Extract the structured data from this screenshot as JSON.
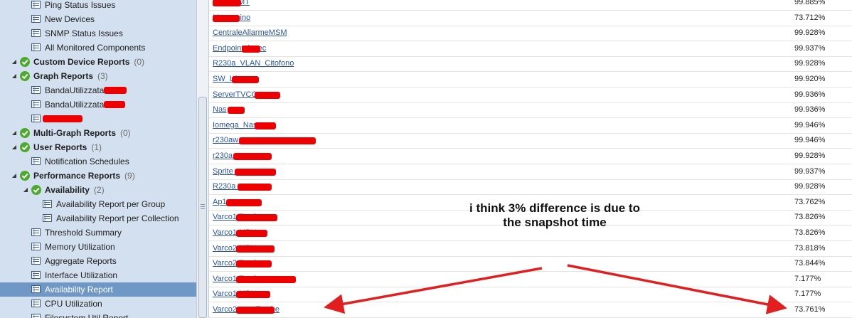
{
  "tree": {
    "items": [
      {
        "label": "Ping Status Issues",
        "level": 2,
        "type": "report"
      },
      {
        "label": "New Devices",
        "level": 2,
        "type": "report"
      },
      {
        "label": "SNMP Status Issues",
        "level": 2,
        "type": "report"
      },
      {
        "label": "All Monitored Components",
        "level": 2,
        "type": "report"
      },
      {
        "label": "Custom Device Reports",
        "count": "(0)",
        "level": 1,
        "type": "group"
      },
      {
        "label": "Graph Reports",
        "count": "(3)",
        "level": 1,
        "type": "group"
      },
      {
        "label": "BandaUtilizzata",
        "level": 2,
        "type": "report"
      },
      {
        "label": "BandaUtilizzata",
        "level": 2,
        "type": "report"
      },
      {
        "label": "",
        "level": 2,
        "type": "report"
      },
      {
        "label": "Multi-Graph Reports",
        "count": "(0)",
        "level": 1,
        "type": "group"
      },
      {
        "label": "User Reports",
        "count": "(1)",
        "level": 1,
        "type": "group"
      },
      {
        "label": "Notification Schedules",
        "level": 2,
        "type": "report"
      },
      {
        "label": "Performance Reports",
        "count": "(9)",
        "level": 1,
        "type": "group"
      },
      {
        "label": "Availability",
        "count": "(2)",
        "level": 2,
        "type": "group"
      },
      {
        "label": "Availability Report per Group",
        "level": 3,
        "type": "report"
      },
      {
        "label": "Availability Report per Collection",
        "level": 3,
        "type": "report"
      },
      {
        "label": "Threshold Summary",
        "level": 2,
        "type": "report"
      },
      {
        "label": "Memory Utilization",
        "level": 2,
        "type": "report"
      },
      {
        "label": "Aggregate Reports",
        "level": 2,
        "type": "report"
      },
      {
        "label": "Interface Utilization",
        "level": 2,
        "type": "report"
      },
      {
        "label": "Availability Report",
        "level": 2,
        "type": "report",
        "selected": true
      },
      {
        "label": "CPU Utilization",
        "level": 2,
        "type": "report"
      },
      {
        "label": "Filesystem Util Report",
        "level": 2,
        "type": "report"
      }
    ]
  },
  "table": {
    "rows": [
      {
        "device": "ANTBTMT",
        "value": "99.885%"
      },
      {
        "device": "Magazzino",
        "value": "73.712%"
      },
      {
        "device": "CentraleAllarmeMSM",
        "value": "99.928%"
      },
      {
        "device": "Endpoint_ipsec",
        "value": "99.937%"
      },
      {
        "device": "R230a_VLAN_Citofono",
        "value": "99.928%"
      },
      {
        "device": "SW_L3_",
        "value": "99.920%"
      },
      {
        "device": "ServerTVCC",
        "value": "99.936%"
      },
      {
        "device": "Nas",
        "value": "99.936%"
      },
      {
        "device": "Iomega_Nas_",
        "value": "99.946%"
      },
      {
        "device": "r230aw_",
        "value": "99.946%"
      },
      {
        "device": "r230a_",
        "value": "99.928%"
      },
      {
        "device": "Sprite_",
        "value": "99.937%"
      },
      {
        "device": "R230a_",
        "value": "99.928%"
      },
      {
        "device": "Ap1",
        "value": "73.762%"
      },
      {
        "device": "Varco1 Targhe",
        "value": "73.826%"
      },
      {
        "device": "Varco1 MPX",
        "value": "73.826%"
      },
      {
        "device": "Varco2 MPX",
        "value": "73.818%"
      },
      {
        "device": "Varco2 Targhe",
        "value": "73.844%"
      },
      {
        "device": "Varco1 Targhe",
        "value": "7.177%"
      },
      {
        "device": "Varco1 MPX",
        "value": "7.177%"
      },
      {
        "device": "Varco2 uccoTarghe",
        "value": "73.761%"
      }
    ]
  },
  "annotation": {
    "line1": "i think 3% difference is due to",
    "line2": "the snapshot time",
    "arrow_color": "#e31e1e"
  },
  "colors": {
    "tree_bg": "#d3e0ef",
    "selected_bg": "#6f98c6",
    "link": "#2c55a4",
    "redaction": "#ee0000"
  }
}
